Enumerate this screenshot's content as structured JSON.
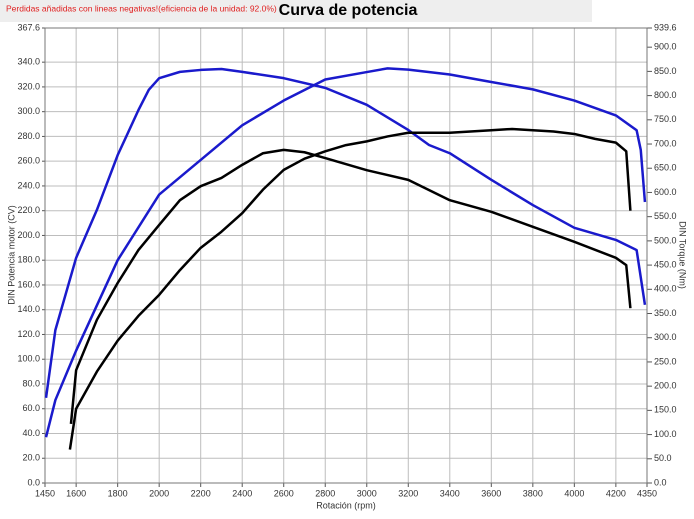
{
  "chart_data": {
    "type": "line",
    "title": "Curva de potencia",
    "annotation": "Perdidas añadidas con lineas negativas!(eficiencia de la unidad: 92.0%)",
    "x_label": "Rotación (rpm)",
    "y_label": "DIN Potencia motor (CV)",
    "y2_label": "DIN Torque (Nm)",
    "grid": true,
    "xlim": [
      1450,
      4350
    ],
    "xticks": [
      1450,
      1600,
      1800,
      2000,
      2200,
      2400,
      2600,
      2800,
      3000,
      3200,
      3400,
      3600,
      3800,
      4000,
      4200,
      4350
    ],
    "ylim": [
      0,
      367.6
    ],
    "yticks": [
      {
        "value": 0,
        "label": "0.0"
      },
      {
        "value": 20,
        "label": "20.0"
      },
      {
        "value": 40,
        "label": "40.0"
      },
      {
        "value": 60,
        "label": "60.0"
      },
      {
        "value": 80,
        "label": "80.0"
      },
      {
        "value": 100,
        "label": "100.0"
      },
      {
        "value": 120,
        "label": "120.0"
      },
      {
        "value": 140,
        "label": "140.0"
      },
      {
        "value": 160,
        "label": "160.0"
      },
      {
        "value": 180,
        "label": "180.0"
      },
      {
        "value": 200,
        "label": "200.0"
      },
      {
        "value": 220,
        "label": "220.0"
      },
      {
        "value": 240,
        "label": "240.0"
      },
      {
        "value": 260,
        "label": "260.0"
      },
      {
        "value": 280,
        "label": "280.0"
      },
      {
        "value": 300,
        "label": "300.0"
      },
      {
        "value": 320,
        "label": "320.0"
      },
      {
        "value": 340,
        "label": "340.0"
      },
      367.6
    ],
    "y2lim": [
      0,
      939.6
    ],
    "y2ticks": [
      {
        "value": 0,
        "label": "0.0"
      },
      {
        "value": 50,
        "label": "50.0"
      },
      {
        "value": 100,
        "label": "100.0"
      },
      {
        "value": 150,
        "label": "150.0"
      },
      {
        "value": 200,
        "label": "200.0"
      },
      {
        "value": 250,
        "label": "250.0"
      },
      {
        "value": 300,
        "label": "300.0"
      },
      {
        "value": 350,
        "label": "350.0"
      },
      {
        "value": 400,
        "label": "400.0"
      },
      {
        "value": 450,
        "label": "450.0"
      },
      {
        "value": 500,
        "label": "500.0"
      },
      {
        "value": 550,
        "label": "550.0"
      },
      {
        "value": 600,
        "label": "600.0"
      },
      {
        "value": 650,
        "label": "650.0"
      },
      {
        "value": 700,
        "label": "700.0"
      },
      {
        "value": 750,
        "label": "750.0"
      },
      {
        "value": 800,
        "label": "800.0"
      },
      {
        "value": 850,
        "label": "850.0"
      },
      {
        "value": 900,
        "label": "900.0"
      },
      939.6
    ],
    "series": [
      {
        "color": "#1a1acc",
        "axis": "y",
        "x": [
          1455,
          1500,
          1600,
          1800,
          2000,
          2200,
          2400,
          2600,
          2800,
          3000,
          3100,
          3200,
          3400,
          3600,
          3800,
          4000,
          4200,
          4300,
          4320,
          4340
        ],
        "values": [
          37,
          67,
          107,
          180,
          233,
          261,
          289,
          309,
          326,
          332,
          335,
          334,
          330,
          324,
          318,
          309,
          297,
          285,
          269,
          227
        ]
      },
      {
        "color": "#1a1acc",
        "axis": "y2",
        "x": [
          1455,
          1500,
          1600,
          1700,
          1800,
          1900,
          1950,
          2000,
          2100,
          2200,
          2300,
          2400,
          2600,
          2800,
          3000,
          3200,
          3300,
          3400,
          3600,
          3800,
          4000,
          4200,
          4300,
          4340
        ],
        "values": [
          176,
          316,
          465,
          564,
          677,
          770,
          812,
          836,
          849,
          853,
          855,
          849,
          836,
          816,
          781,
          729,
          698,
          681,
          626,
          574,
          527,
          502,
          481,
          368
        ]
      },
      {
        "color": "#000000",
        "axis": "y",
        "x": [
          1570,
          1600,
          1700,
          1800,
          1900,
          2000,
          2100,
          2200,
          2300,
          2400,
          2500,
          2600,
          2700,
          2800,
          2900,
          3000,
          3100,
          3200,
          3400,
          3600,
          3700,
          3800,
          3900,
          4000,
          4100,
          4200,
          4250,
          4270
        ],
        "values": [
          27,
          60,
          90,
          115,
          135,
          152,
          172,
          190,
          203,
          218,
          237,
          253,
          262,
          268,
          273,
          276,
          280,
          283,
          283,
          285,
          286,
          285,
          284,
          282,
          278,
          275,
          268,
          220
        ]
      },
      {
        "color": "#000000",
        "axis": "y2",
        "x": [
          1575,
          1600,
          1700,
          1800,
          1900,
          2000,
          2100,
          2200,
          2300,
          2400,
          2500,
          2600,
          2700,
          2800,
          3000,
          3200,
          3400,
          3600,
          3800,
          4000,
          4200,
          4250,
          4270
        ],
        "values": [
          122,
          233,
          337,
          413,
          481,
          533,
          584,
          613,
          630,
          657,
          681,
          688,
          683,
          671,
          646,
          626,
          584,
          560,
          529,
          498,
          465,
          450,
          361
        ]
      }
    ]
  }
}
